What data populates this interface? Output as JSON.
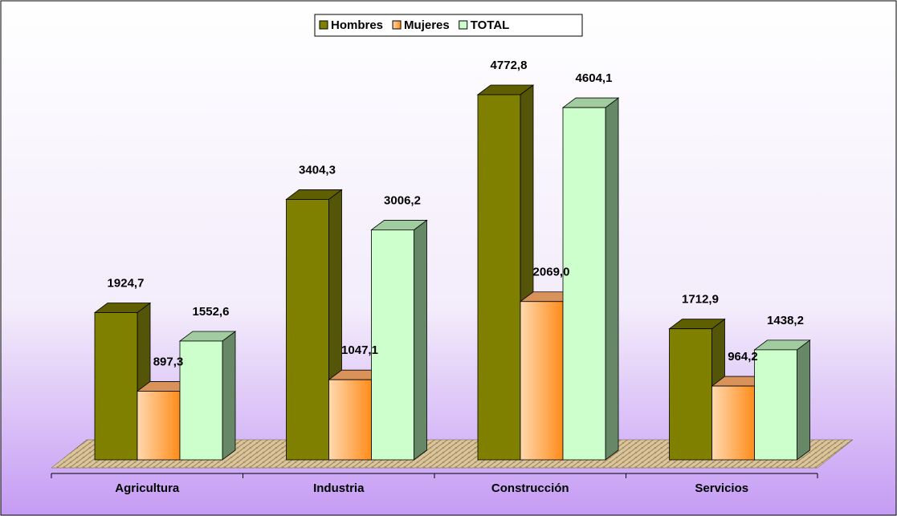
{
  "chart_data": {
    "type": "bar",
    "categories": [
      "Agricultura",
      "Industria",
      "Construcción",
      "Servicios"
    ],
    "series": [
      {
        "name": "Hombres",
        "color": "#808000",
        "values": [
          1924.7,
          3404.3,
          4772.8,
          1712.9
        ],
        "value_labels": [
          "1924,7",
          "3404,3",
          "4772,8",
          "1712,9"
        ]
      },
      {
        "name": "Mujeres",
        "color": "#ff9933",
        "values": [
          897.3,
          1047.1,
          2069.0,
          964.2
        ],
        "value_labels": [
          "897,3",
          "1047,1",
          "2069,0",
          "964,2"
        ]
      },
      {
        "name": "TOTAL",
        "color": "#ccffcc",
        "values": [
          1552.6,
          3006.2,
          4604.1,
          1438.2
        ],
        "value_labels": [
          "1552,6",
          "3006,2",
          "4604,1",
          "1438,2"
        ]
      }
    ],
    "legend": "top"
  }
}
